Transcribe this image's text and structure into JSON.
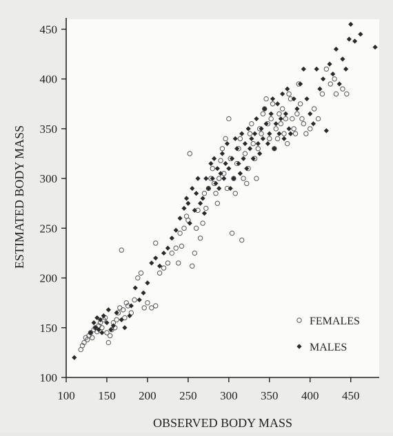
{
  "chart_data": {
    "type": "scatter",
    "title": "",
    "xlabel": "OBSERVED BODY MASS",
    "ylabel": "ESTIMATED BODY MASS",
    "xlim": [
      100,
      485
    ],
    "ylim": [
      100,
      460
    ],
    "xticks": [
      100,
      150,
      200,
      250,
      300,
      350,
      400,
      450
    ],
    "yticks": [
      100,
      150,
      200,
      250,
      300,
      350,
      400,
      450
    ],
    "grid": false,
    "legend_position": "bottom-right",
    "series": [
      {
        "name": "FEMALES",
        "marker": "open-circle",
        "color": "#555555",
        "points": [
          [
            118,
            128
          ],
          [
            120,
            132
          ],
          [
            122,
            135
          ],
          [
            124,
            140
          ],
          [
            126,
            138
          ],
          [
            128,
            142
          ],
          [
            130,
            145
          ],
          [
            132,
            140
          ],
          [
            134,
            148
          ],
          [
            136,
            150
          ],
          [
            138,
            146
          ],
          [
            140,
            152
          ],
          [
            142,
            155
          ],
          [
            144,
            150
          ],
          [
            146,
            158
          ],
          [
            148,
            160
          ],
          [
            150,
            145
          ],
          [
            152,
            135
          ],
          [
            154,
            142
          ],
          [
            156,
            148
          ],
          [
            158,
            155
          ],
          [
            160,
            150
          ],
          [
            162,
            158
          ],
          [
            164,
            165
          ],
          [
            166,
            170
          ],
          [
            168,
            228
          ],
          [
            170,
            168
          ],
          [
            172,
            160
          ],
          [
            174,
            175
          ],
          [
            176,
            172
          ],
          [
            180,
            165
          ],
          [
            184,
            178
          ],
          [
            188,
            200
          ],
          [
            192,
            205
          ],
          [
            196,
            170
          ],
          [
            200,
            175
          ],
          [
            205,
            170
          ],
          [
            210,
            172
          ],
          [
            210,
            235
          ],
          [
            215,
            205
          ],
          [
            220,
            210
          ],
          [
            225,
            215
          ],
          [
            230,
            225
          ],
          [
            235,
            230
          ],
          [
            238,
            215
          ],
          [
            240,
            245
          ],
          [
            242,
            232
          ],
          [
            245,
            250
          ],
          [
            248,
            262
          ],
          [
            250,
            258
          ],
          [
            252,
            325
          ],
          [
            255,
            212
          ],
          [
            258,
            225
          ],
          [
            260,
            250
          ],
          [
            262,
            268
          ],
          [
            265,
            240
          ],
          [
            268,
            255
          ],
          [
            270,
            285
          ],
          [
            272,
            270
          ],
          [
            275,
            290
          ],
          [
            278,
            300
          ],
          [
            280,
            310
          ],
          [
            282,
            295
          ],
          [
            284,
            285
          ],
          [
            286,
            275
          ],
          [
            288,
            300
          ],
          [
            290,
            318
          ],
          [
            292,
            330
          ],
          [
            294,
            305
          ],
          [
            296,
            340
          ],
          [
            298,
            290
          ],
          [
            300,
            360
          ],
          [
            302,
            320
          ],
          [
            304,
            245
          ],
          [
            306,
            300
          ],
          [
            308,
            285
          ],
          [
            310,
            315
          ],
          [
            312,
            330
          ],
          [
            314,
            340
          ],
          [
            316,
            238
          ],
          [
            318,
            300
          ],
          [
            320,
            325
          ],
          [
            322,
            295
          ],
          [
            324,
            310
          ],
          [
            326,
            345
          ],
          [
            328,
            355
          ],
          [
            330,
            335
          ],
          [
            332,
            320
          ],
          [
            334,
            300
          ],
          [
            336,
            330
          ],
          [
            338,
            350
          ],
          [
            340,
            345
          ],
          [
            342,
            365
          ],
          [
            344,
            370
          ],
          [
            346,
            380
          ],
          [
            348,
            355
          ],
          [
            350,
            340
          ],
          [
            352,
            360
          ],
          [
            354,
            375
          ],
          [
            356,
            330
          ],
          [
            358,
            350
          ],
          [
            360,
            340
          ],
          [
            362,
            365
          ],
          [
            364,
            355
          ],
          [
            366,
            370
          ],
          [
            368,
            345
          ],
          [
            370,
            360
          ],
          [
            372,
            335
          ],
          [
            374,
            385
          ],
          [
            376,
            380
          ],
          [
            378,
            360
          ],
          [
            380,
            350
          ],
          [
            382,
            345
          ],
          [
            384,
            365
          ],
          [
            386,
            395
          ],
          [
            388,
            375
          ],
          [
            390,
            360
          ],
          [
            392,
            355
          ],
          [
            395,
            345
          ],
          [
            400,
            350
          ],
          [
            405,
            370
          ],
          [
            410,
            360
          ],
          [
            415,
            385
          ],
          [
            420,
            410
          ],
          [
            425,
            395
          ],
          [
            430,
            400
          ],
          [
            432,
            385
          ],
          [
            440,
            390
          ],
          [
            445,
            385
          ]
        ]
      },
      {
        "name": "MALES",
        "marker": "filled-diamond",
        "color": "#2a2a2a",
        "points": [
          [
            110,
            120
          ],
          [
            130,
            145
          ],
          [
            134,
            155
          ],
          [
            136,
            150
          ],
          [
            138,
            160
          ],
          [
            140,
            148
          ],
          [
            142,
            158
          ],
          [
            144,
            145
          ],
          [
            146,
            162
          ],
          [
            150,
            155
          ],
          [
            152,
            168
          ],
          [
            155,
            148
          ],
          [
            158,
            152
          ],
          [
            162,
            165
          ],
          [
            168,
            158
          ],
          [
            172,
            150
          ],
          [
            178,
            162
          ],
          [
            180,
            172
          ],
          [
            185,
            190
          ],
          [
            190,
            178
          ],
          [
            195,
            185
          ],
          [
            200,
            195
          ],
          [
            205,
            215
          ],
          [
            210,
            220
          ],
          [
            215,
            212
          ],
          [
            220,
            225
          ],
          [
            225,
            230
          ],
          [
            230,
            240
          ],
          [
            235,
            248
          ],
          [
            240,
            260
          ],
          [
            245,
            270
          ],
          [
            248,
            280
          ],
          [
            250,
            275
          ],
          [
            252,
            255
          ],
          [
            255,
            290
          ],
          [
            258,
            268
          ],
          [
            260,
            285
          ],
          [
            262,
            300
          ],
          [
            265,
            275
          ],
          [
            268,
            280
          ],
          [
            270,
            265
          ],
          [
            272,
            300
          ],
          [
            275,
            290
          ],
          [
            278,
            315
          ],
          [
            280,
            300
          ],
          [
            282,
            320
          ],
          [
            284,
            295
          ],
          [
            286,
            310
          ],
          [
            288,
            290
          ],
          [
            290,
            305
          ],
          [
            292,
            325
          ],
          [
            294,
            300
          ],
          [
            296,
            315
          ],
          [
            298,
            335
          ],
          [
            300,
            310
          ],
          [
            302,
            290
          ],
          [
            304,
            320
          ],
          [
            306,
            300
          ],
          [
            308,
            340
          ],
          [
            310,
            330
          ],
          [
            312,
            315
          ],
          [
            314,
            305
          ],
          [
            316,
            345
          ],
          [
            318,
            320
          ],
          [
            320,
            335
          ],
          [
            322,
            310
          ],
          [
            324,
            350
          ],
          [
            326,
            330
          ],
          [
            328,
            340
          ],
          [
            330,
            320
          ],
          [
            332,
            345
          ],
          [
            334,
            360
          ],
          [
            336,
            335
          ],
          [
            338,
            325
          ],
          [
            340,
            350
          ],
          [
            342,
            340
          ],
          [
            344,
            370
          ],
          [
            346,
            355
          ],
          [
            348,
            335
          ],
          [
            350,
            345
          ],
          [
            352,
            365
          ],
          [
            354,
            380
          ],
          [
            356,
            330
          ],
          [
            358,
            355
          ],
          [
            360,
            375
          ],
          [
            362,
            345
          ],
          [
            364,
            360
          ],
          [
            366,
            385
          ],
          [
            368,
            340
          ],
          [
            370,
            365
          ],
          [
            372,
            390
          ],
          [
            374,
            350
          ],
          [
            376,
            345
          ],
          [
            380,
            380
          ],
          [
            384,
            370
          ],
          [
            388,
            395
          ],
          [
            392,
            410
          ],
          [
            396,
            380
          ],
          [
            400,
            365
          ],
          [
            404,
            355
          ],
          [
            408,
            410
          ],
          [
            412,
            390
          ],
          [
            416,
            400
          ],
          [
            420,
            348
          ],
          [
            424,
            415
          ],
          [
            428,
            405
          ],
          [
            432,
            430
          ],
          [
            436,
            395
          ],
          [
            440,
            420
          ],
          [
            444,
            410
          ],
          [
            448,
            440
          ],
          [
            450,
            455
          ],
          [
            455,
            438
          ],
          [
            462,
            445
          ],
          [
            480,
            432
          ]
        ]
      }
    ]
  }
}
